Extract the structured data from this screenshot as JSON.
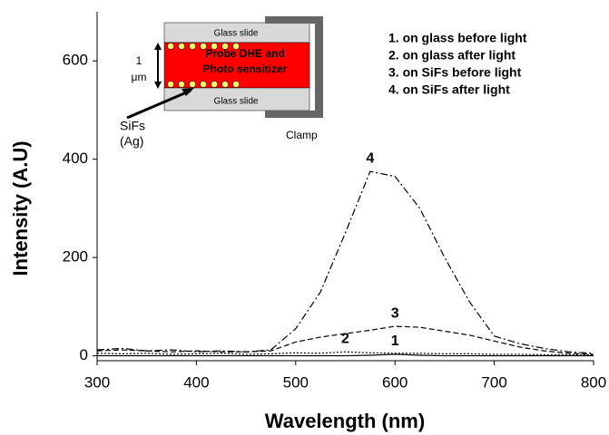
{
  "chart_data": {
    "type": "line",
    "x_label": "Wavelength (nm)",
    "y_label": "Intensity (A.U)",
    "x": [
      300,
      325,
      350,
      375,
      400,
      425,
      450,
      475,
      500,
      525,
      550,
      575,
      600,
      625,
      650,
      675,
      700,
      725,
      750,
      775,
      800
    ],
    "series": [
      {
        "name": "1. on glass before light",
        "label": "1",
        "color": "#000000",
        "style": "solid",
        "values": [
          0,
          0,
          0,
          0,
          0,
          0,
          0,
          0,
          0,
          0,
          0,
          1,
          3,
          1,
          0,
          0,
          0,
          0,
          0,
          0,
          0
        ]
      },
      {
        "name": "2. on glass after light",
        "label": "2",
        "color": "#000000",
        "style": "dotted",
        "values": [
          5,
          4,
          5,
          3,
          4,
          5,
          3,
          4,
          6,
          5,
          8,
          6,
          5,
          5,
          4,
          4,
          3,
          3,
          2,
          2,
          2
        ]
      },
      {
        "name": "3. on SiFs before light",
        "label": "3",
        "color": "#000000",
        "style": "dashed",
        "values": [
          10,
          12,
          10,
          8,
          10,
          8,
          8,
          10,
          28,
          38,
          45,
          52,
          60,
          58,
          50,
          42,
          30,
          18,
          10,
          5,
          3
        ]
      },
      {
        "name": "4. on SiFs after light",
        "label": "4",
        "color": "#000000",
        "style": "dashdot",
        "values": [
          12,
          15,
          10,
          12,
          8,
          10,
          8,
          12,
          55,
          130,
          250,
          375,
          365,
          300,
          200,
          110,
          40,
          25,
          15,
          8,
          5
        ]
      }
    ],
    "xlim": [
      300,
      800
    ],
    "xticks": [
      300,
      400,
      500,
      600,
      700,
      800
    ],
    "ylim": [
      -10,
      700
    ],
    "yticks": [
      0,
      200,
      400,
      600
    ]
  },
  "inset": {
    "top_slide": "Glass slide",
    "layer_line1": "Probe DHE and",
    "layer_line2": "Photo sensitizer",
    "bottom_slide": "Glass slide",
    "thickness_line1": "1",
    "thickness_line2": "μm",
    "particles_line1": "SiFs",
    "particles_line2": "(Ag)",
    "clamp": "Clamp"
  }
}
